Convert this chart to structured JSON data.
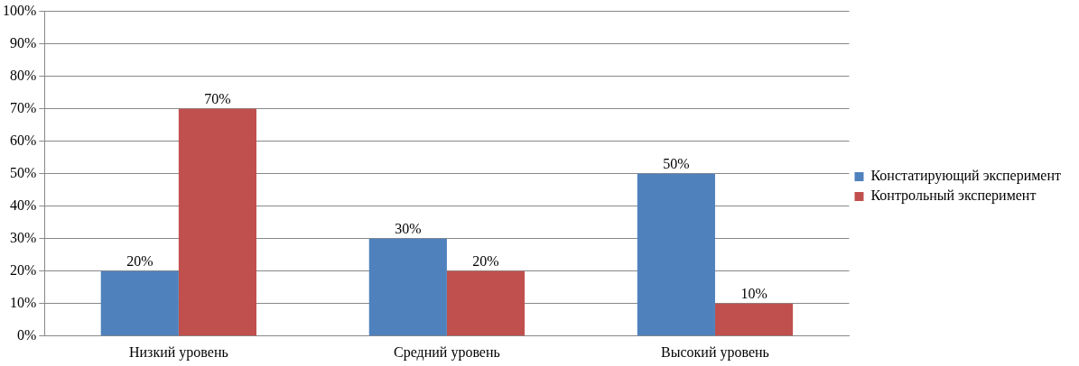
{
  "chart_data": {
    "type": "bar",
    "categories": [
      "Низкий уровень",
      "Средний уровень",
      "Высокий уровень"
    ],
    "series": [
      {
        "name": "Констатирующий эксперимент",
        "color": "#4f81bd",
        "values": [
          20,
          30,
          50
        ],
        "value_labels": [
          "20%",
          "30%",
          "50%"
        ]
      },
      {
        "name": "Контрольный эксперимент",
        "color": "#c0504d",
        "values": [
          70,
          20,
          10
        ],
        "value_labels": [
          "70%",
          "20%",
          "10%"
        ]
      }
    ],
    "ylim": [
      0,
      100
    ],
    "yticks": [
      {
        "value": 0,
        "label": "0%"
      },
      {
        "value": 10,
        "label": "10%"
      },
      {
        "value": 20,
        "label": "20%"
      },
      {
        "value": 30,
        "label": "30%"
      },
      {
        "value": 40,
        "label": "40%"
      },
      {
        "value": 50,
        "label": "50%"
      },
      {
        "value": 60,
        "label": "60%"
      },
      {
        "value": 70,
        "label": "70%"
      },
      {
        "value": 80,
        "label": "80%"
      },
      {
        "value": 90,
        "label": "90%"
      },
      {
        "value": 100,
        "label": "100%"
      }
    ],
    "grid": "y",
    "legend": "right"
  }
}
